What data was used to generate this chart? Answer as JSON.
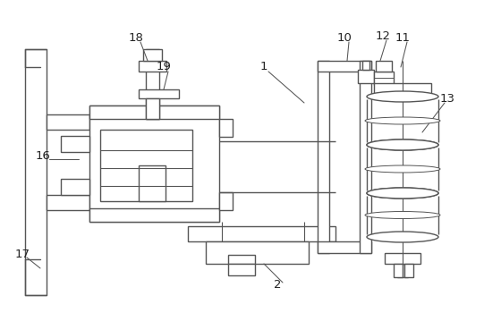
{
  "bg_color": "#ffffff",
  "line_color": "#555555",
  "lw": 1.0,
  "figsize": [
    5.41,
    3.59
  ],
  "dpi": 100,
  "labels": [
    [
      "1",
      295,
      75
    ],
    [
      "2",
      310,
      318
    ],
    [
      "10",
      385,
      42
    ],
    [
      "11",
      450,
      42
    ],
    [
      "12",
      428,
      40
    ],
    [
      "13",
      500,
      110
    ],
    [
      "16",
      48,
      175
    ],
    [
      "17",
      25,
      285
    ],
    [
      "18",
      152,
      42
    ],
    [
      "19",
      183,
      75
    ]
  ],
  "leader_lines": [
    [
      300,
      80,
      340,
      115
    ],
    [
      316,
      316,
      295,
      295
    ],
    [
      390,
      47,
      388,
      68
    ],
    [
      455,
      47,
      448,
      75
    ],
    [
      432,
      45,
      425,
      68
    ],
    [
      497,
      115,
      472,
      148
    ],
    [
      55,
      178,
      88,
      178
    ],
    [
      30,
      288,
      45,
      300
    ],
    [
      157,
      47,
      165,
      68
    ],
    [
      188,
      80,
      183,
      100
    ]
  ]
}
